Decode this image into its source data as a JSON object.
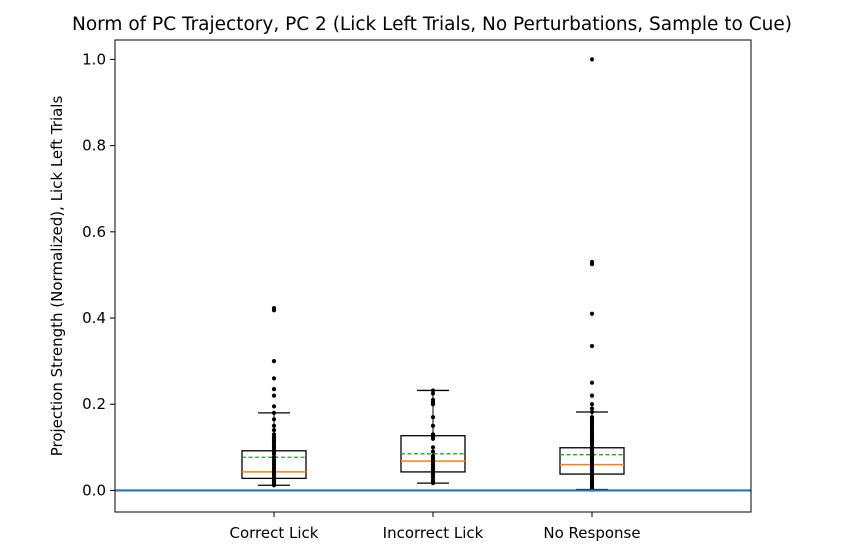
{
  "chart_data": {
    "type": "box",
    "title": "Norm of PC Trajectory, PC 2  (Lick Left Trials, No Perturbations, Sample to Cue)",
    "xlabel": "",
    "ylabel": "Projection Strength (Normalized), Lick Left Trials",
    "ylim": [
      -0.05,
      1.045
    ],
    "yticks": [
      0.0,
      0.2,
      0.4,
      0.6,
      0.8,
      1.0
    ],
    "ytick_labels": [
      "0.0",
      "0.2",
      "0.4",
      "0.6",
      "0.8",
      "1.0"
    ],
    "grid": false,
    "reference_line": {
      "y": 0.0,
      "color": "#1f77b4"
    },
    "colors": {
      "box": "#000000",
      "median": "#ff7f0e",
      "mean": "#2ca02c",
      "points": "#000000"
    },
    "categories": [
      "Correct Lick",
      "Incorrect Lick",
      "No Response"
    ],
    "boxes": [
      {
        "q1": 0.028,
        "median": 0.043,
        "q3": 0.092,
        "mean": 0.077,
        "whisker_low": 0.012,
        "whisker_high": 0.18,
        "points": [
          0.012,
          0.015,
          0.018,
          0.02,
          0.024,
          0.03,
          0.035,
          0.04,
          0.045,
          0.05,
          0.055,
          0.06,
          0.063,
          0.068,
          0.072,
          0.078,
          0.085,
          0.09,
          0.095,
          0.1,
          0.105,
          0.11,
          0.115,
          0.12,
          0.125,
          0.13,
          0.14,
          0.15,
          0.165,
          0.18,
          0.195,
          0.22,
          0.235,
          0.26,
          0.3,
          0.418,
          0.423
        ]
      },
      {
        "q1": 0.043,
        "median": 0.068,
        "q3": 0.127,
        "mean": 0.085,
        "whisker_low": 0.017,
        "whisker_high": 0.232,
        "points": [
          0.017,
          0.02,
          0.024,
          0.03,
          0.035,
          0.04,
          0.045,
          0.05,
          0.055,
          0.06,
          0.065,
          0.07,
          0.075,
          0.08,
          0.09,
          0.1,
          0.12,
          0.125,
          0.13,
          0.15,
          0.17,
          0.2,
          0.205,
          0.21,
          0.225,
          0.232
        ]
      },
      {
        "q1": 0.038,
        "median": 0.06,
        "q3": 0.099,
        "mean": 0.083,
        "whisker_low": 0.002,
        "whisker_high": 0.182,
        "points": [
          0.002,
          0.005,
          0.008,
          0.012,
          0.015,
          0.02,
          0.025,
          0.03,
          0.035,
          0.04,
          0.045,
          0.05,
          0.055,
          0.06,
          0.065,
          0.07,
          0.075,
          0.08,
          0.085,
          0.09,
          0.095,
          0.1,
          0.105,
          0.11,
          0.115,
          0.12,
          0.125,
          0.13,
          0.135,
          0.14,
          0.145,
          0.15,
          0.155,
          0.16,
          0.165,
          0.17,
          0.182,
          0.19,
          0.2,
          0.22,
          0.25,
          0.335,
          0.41,
          0.525,
          0.53,
          1.0
        ]
      }
    ]
  }
}
